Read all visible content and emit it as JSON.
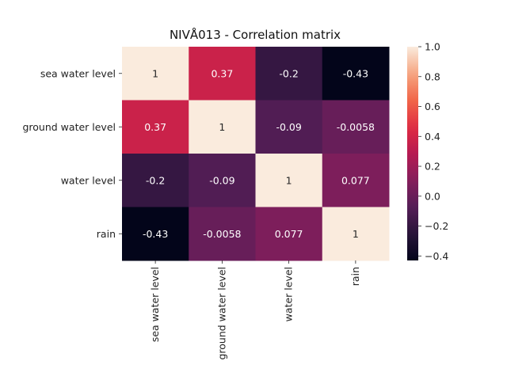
{
  "chart_data": {
    "type": "heatmap",
    "title": "NIVÅ013 - Correlation matrix",
    "xlabel": "",
    "ylabel": "",
    "row_labels": [
      "sea water level",
      "ground water level",
      "water level",
      "rain"
    ],
    "col_labels": [
      "sea water level",
      "ground water level",
      "water level",
      "rain"
    ],
    "values": [
      [
        1,
        0.37,
        -0.2,
        -0.43
      ],
      [
        0.37,
        1,
        -0.09,
        -0.0058
      ],
      [
        -0.2,
        -0.09,
        1,
        0.077
      ],
      [
        -0.43,
        -0.0058,
        0.077,
        1
      ]
    ],
    "annotations": [
      [
        "1",
        "0.37",
        "-0.2",
        "-0.43"
      ],
      [
        "0.37",
        "1",
        "-0.09",
        "-0.0058"
      ],
      [
        "-0.2",
        "-0.09",
        "1",
        "0.077"
      ],
      [
        "-0.43",
        "-0.0058",
        "0.077",
        "1"
      ]
    ],
    "colorbar": {
      "range": [
        -0.43,
        1.0
      ],
      "ticks": [
        1.0,
        0.8,
        0.6,
        0.4,
        0.2,
        0.0,
        -0.2,
        -0.4
      ],
      "tick_labels": [
        "1.0",
        "0.8",
        "0.6",
        "0.4",
        "0.2",
        "0.0",
        "−0.2",
        "−0.4"
      ]
    },
    "colormap": "rocket",
    "grid": false,
    "legend": "colorbar right"
  }
}
